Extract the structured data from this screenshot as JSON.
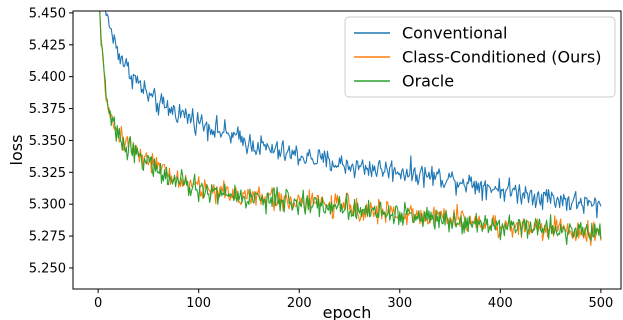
{
  "chart_data": {
    "type": "line",
    "title": "",
    "xlabel": "epoch",
    "ylabel": "loss",
    "xlim": [
      -25,
      520
    ],
    "ylim": [
      5.2335,
      5.4515
    ],
    "x_ticks": [
      0,
      100,
      200,
      300,
      400,
      500
    ],
    "x_tick_labels": [
      "0",
      "100",
      "200",
      "300",
      "400",
      "500"
    ],
    "y_ticks": [
      5.25,
      5.275,
      5.3,
      5.325,
      5.35,
      5.375,
      5.4,
      5.425,
      5.45
    ],
    "y_tick_labels": [
      "5.250",
      "5.275",
      "5.300",
      "5.325",
      "5.350",
      "5.375",
      "5.400",
      "5.425",
      "5.450"
    ],
    "grid": false,
    "legend": "top-right",
    "x_points": 500,
    "series": [
      {
        "name": "Conventional",
        "color": "#1f77b4",
        "key_points": [
          [
            1,
            5.47
          ],
          [
            5,
            5.455
          ],
          [
            10,
            5.445
          ],
          [
            15,
            5.43
          ],
          [
            20,
            5.42
          ],
          [
            30,
            5.405
          ],
          [
            40,
            5.395
          ],
          [
            50,
            5.385
          ],
          [
            60,
            5.378
          ],
          [
            80,
            5.372
          ],
          [
            100,
            5.365
          ],
          [
            125,
            5.356
          ],
          [
            150,
            5.348
          ],
          [
            175,
            5.342
          ],
          [
            200,
            5.338
          ],
          [
            250,
            5.33
          ],
          [
            300,
            5.326
          ],
          [
            350,
            5.32
          ],
          [
            400,
            5.312
          ],
          [
            450,
            5.305
          ],
          [
            500,
            5.298
          ]
        ],
        "noise": 0.0045
      },
      {
        "name": "Class-Conditioned (Ours)",
        "color": "#ff7f0e",
        "key_points": [
          [
            1,
            5.46
          ],
          [
            3,
            5.43
          ],
          [
            5,
            5.41
          ],
          [
            8,
            5.385
          ],
          [
            12,
            5.368
          ],
          [
            20,
            5.355
          ],
          [
            30,
            5.348
          ],
          [
            50,
            5.335
          ],
          [
            70,
            5.322
          ],
          [
            100,
            5.313
          ],
          [
            150,
            5.306
          ],
          [
            200,
            5.302
          ],
          [
            250,
            5.298
          ],
          [
            300,
            5.292
          ],
          [
            350,
            5.289
          ],
          [
            400,
            5.283
          ],
          [
            450,
            5.281
          ],
          [
            500,
            5.278
          ]
        ],
        "noise": 0.0045
      },
      {
        "name": "Oracle",
        "color": "#2ca02c",
        "key_points": [
          [
            1,
            5.46
          ],
          [
            3,
            5.43
          ],
          [
            5,
            5.41
          ],
          [
            8,
            5.385
          ],
          [
            12,
            5.368
          ],
          [
            20,
            5.353
          ],
          [
            30,
            5.345
          ],
          [
            50,
            5.333
          ],
          [
            70,
            5.32
          ],
          [
            100,
            5.311
          ],
          [
            150,
            5.305
          ],
          [
            200,
            5.301
          ],
          [
            250,
            5.297
          ],
          [
            300,
            5.292
          ],
          [
            350,
            5.288
          ],
          [
            400,
            5.284
          ],
          [
            450,
            5.281
          ],
          [
            500,
            5.277
          ]
        ],
        "noise": 0.0045
      }
    ]
  }
}
